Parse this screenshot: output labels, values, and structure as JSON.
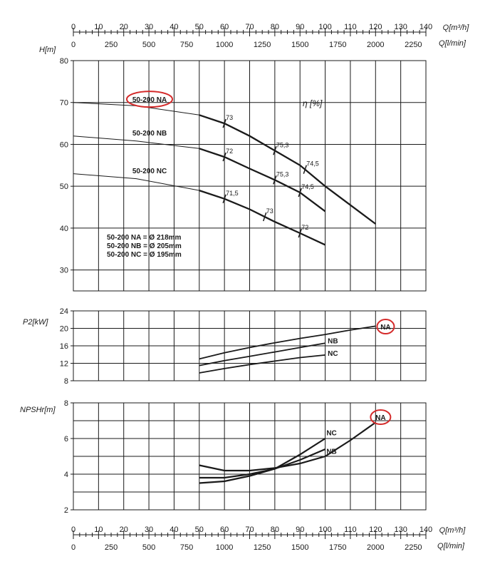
{
  "axes": {
    "q_m3h_label": "Q[m³/h]",
    "q_lmin_label": "Q[l/min]",
    "q_m3h_ticks": [
      "0",
      "10",
      "20",
      "30",
      "40",
      "50",
      "60",
      "70",
      "80",
      "90",
      "100",
      "110",
      "120",
      "130",
      "140"
    ],
    "q_lmin_ticks": [
      "0",
      "250",
      "500",
      "750",
      "1000",
      "1250",
      "1500",
      "1750",
      "2000",
      "2250"
    ],
    "h_label": "H[m]",
    "h_ticks": [
      "80",
      "70",
      "60",
      "50",
      "40",
      "30"
    ],
    "p2_label": "P2[kW]",
    "p2_ticks": [
      "24",
      "20",
      "16",
      "12",
      "8"
    ],
    "npsh_label": "NPSHr[m]",
    "npsh_ticks": [
      "8",
      "6",
      "4",
      "2"
    ],
    "eta_label": "η [%]"
  },
  "annotations": {
    "diam_na": "50-200 NA = Ø 218mm",
    "diam_nb": "50-200 NB = Ø 205mm",
    "diam_nc": "50-200 NC = Ø 195mm",
    "highlight_color": "#d42a2a"
  },
  "chart_data": [
    {
      "type": "line",
      "title": "",
      "xlabel": "Q[m³/h]",
      "ylabel": "H[m]",
      "xlim": [
        0,
        140
      ],
      "ylim": [
        25,
        80
      ],
      "grid": true,
      "series": [
        {
          "name": "50-200 NA",
          "thin": [
            [
              0,
              70
            ],
            [
              25,
              69.2
            ],
            [
              50,
              67
            ]
          ],
          "bold": [
            [
              50,
              67
            ],
            [
              60,
              65
            ],
            [
              70,
              62
            ],
            [
              80,
              58.5
            ],
            [
              90,
              55
            ],
            [
              100,
              50
            ],
            [
              110,
              45.5
            ],
            [
              120,
              41
            ]
          ]
        },
        {
          "name": "50-200 NB",
          "thin": [
            [
              0,
              62
            ],
            [
              25,
              60.8
            ],
            [
              50,
              59
            ]
          ],
          "bold": [
            [
              50,
              59
            ],
            [
              60,
              57
            ],
            [
              70,
              54.2
            ],
            [
              80,
              51.5
            ],
            [
              90,
              48.5
            ],
            [
              100,
              44
            ]
          ]
        },
        {
          "name": "50-200 NC",
          "thin": [
            [
              0,
              53
            ],
            [
              25,
              51.8
            ],
            [
              50,
              49
            ]
          ],
          "bold": [
            [
              50,
              49
            ],
            [
              60,
              47
            ],
            [
              70,
              44.5
            ],
            [
              80,
              41.5
            ],
            [
              90,
              38.8
            ],
            [
              100,
              36
            ]
          ]
        }
      ],
      "efficiency_marks": [
        {
          "label": "73",
          "q": 60,
          "h": 65
        },
        {
          "label": "75,3",
          "q": 80,
          "h": 58.5
        },
        {
          "label": "74,5",
          "q": 92,
          "h": 54
        },
        {
          "label": "72",
          "q": 60,
          "h": 57
        },
        {
          "label": "75,3",
          "q": 80,
          "h": 51.5
        },
        {
          "label": "74,5",
          "q": 90,
          "h": 48.5
        },
        {
          "label": "71,5",
          "q": 60,
          "h": 47
        },
        {
          "label": "73",
          "q": 76,
          "h": 42.7
        },
        {
          "label": "72",
          "q": 90,
          "h": 38.8
        }
      ]
    },
    {
      "type": "line",
      "title": "",
      "xlabel": "Q[m³/h]",
      "ylabel": "P2[kW]",
      "xlim": [
        0,
        140
      ],
      "ylim": [
        8,
        24
      ],
      "grid": true,
      "series": [
        {
          "name": "NA",
          "points": [
            [
              50,
              13
            ],
            [
              60,
              14.4
            ],
            [
              70,
              15.6
            ],
            [
              80,
              16.7
            ],
            [
              90,
              17.7
            ],
            [
              100,
              18.6
            ],
            [
              110,
              19.6
            ],
            [
              120,
              20.5
            ]
          ]
        },
        {
          "name": "NB",
          "points": [
            [
              50,
              11.5
            ],
            [
              60,
              12.6
            ],
            [
              70,
              13.6
            ],
            [
              80,
              14.6
            ],
            [
              90,
              15.6
            ],
            [
              100,
              16.6
            ]
          ]
        },
        {
          "name": "NC",
          "points": [
            [
              50,
              9.8
            ],
            [
              60,
              10.8
            ],
            [
              70,
              11.7
            ],
            [
              80,
              12.5
            ],
            [
              90,
              13.3
            ],
            [
              100,
              13.9
            ]
          ]
        }
      ]
    },
    {
      "type": "line",
      "title": "",
      "xlabel": "Q[m³/h]",
      "ylabel": "NPSHr[m]",
      "xlim": [
        0,
        140
      ],
      "ylim": [
        2,
        8
      ],
      "grid": true,
      "series": [
        {
          "name": "NA",
          "points": [
            [
              50,
              4.5
            ],
            [
              60,
              4.2
            ],
            [
              70,
              4.2
            ],
            [
              80,
              4.35
            ],
            [
              90,
              4.6
            ],
            [
              100,
              5.0
            ],
            [
              110,
              5.9
            ],
            [
              120,
              6.9
            ]
          ]
        },
        {
          "name": "NB",
          "points": [
            [
              50,
              3.5
            ],
            [
              60,
              3.6
            ],
            [
              70,
              3.9
            ],
            [
              80,
              4.3
            ],
            [
              90,
              4.8
            ],
            [
              100,
              5.4
            ]
          ]
        },
        {
          "name": "NC",
          "points": [
            [
              50,
              3.8
            ],
            [
              60,
              3.8
            ],
            [
              70,
              4.0
            ],
            [
              80,
              4.3
            ],
            [
              90,
              5.1
            ],
            [
              100,
              6.0
            ]
          ]
        }
      ]
    }
  ]
}
